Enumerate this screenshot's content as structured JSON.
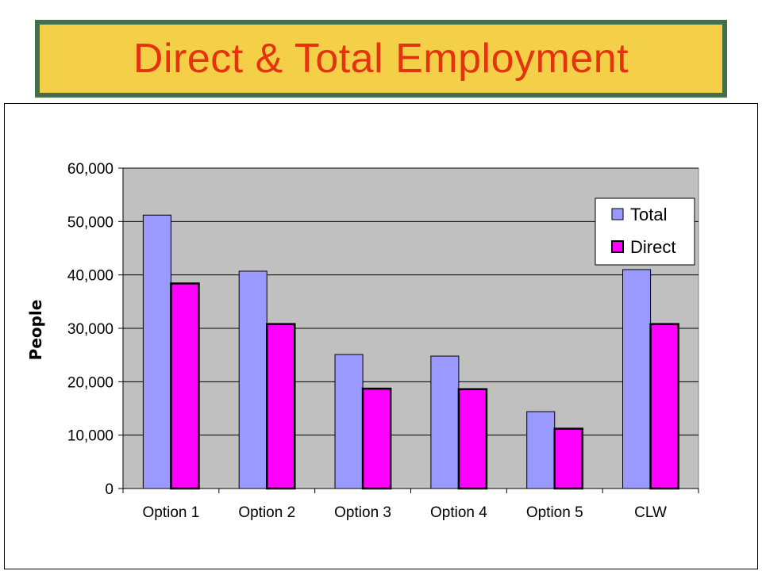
{
  "slide": {
    "title": "Direct & Total Employment"
  },
  "colors": {
    "banner_bg": "#f4d048",
    "banner_border": "#41704b",
    "title_text": "#e3340e",
    "plot_bg": "#c0c0c0",
    "total_bar": "#9999ff",
    "direct_bar": "#ff00ff"
  },
  "chart_data": {
    "type": "bar",
    "title": "",
    "xlabel": "",
    "ylabel": "People",
    "categories": [
      "Option 1",
      "Option 2",
      "Option 3",
      "Option 4",
      "Option 5",
      "CLW"
    ],
    "series": [
      {
        "name": "Total",
        "values": [
          51200,
          40700,
          25100,
          24800,
          14400,
          41000
        ]
      },
      {
        "name": "Direct",
        "values": [
          38400,
          30800,
          18700,
          18600,
          11200,
          30800
        ]
      }
    ],
    "ylim": [
      0,
      60000
    ],
    "yticks": [
      "0",
      "10,000",
      "20,000",
      "30,000",
      "40,000",
      "50,000",
      "60,000"
    ],
    "grid": true,
    "legend_position": "top-right"
  }
}
